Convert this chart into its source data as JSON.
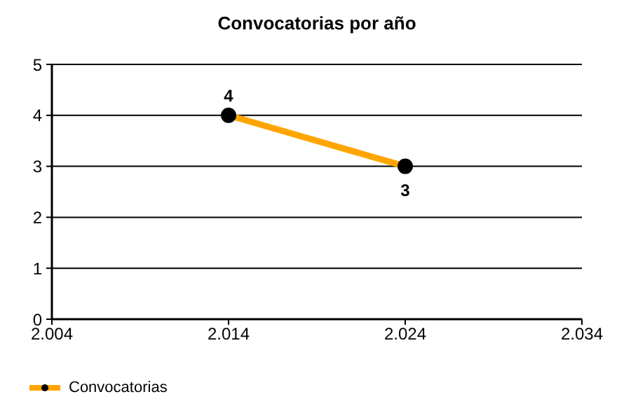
{
  "chart_data": {
    "type": "line",
    "title": "Convocatorias por año",
    "x": [
      2014,
      2024
    ],
    "series": [
      {
        "name": "Convocatorias",
        "color": "#ffa500",
        "values": [
          4,
          3
        ]
      }
    ],
    "xlim": [
      2004,
      2034
    ],
    "xticks": [
      {
        "value": 2004,
        "label": "2.004"
      },
      {
        "value": 2014,
        "label": "2.014"
      },
      {
        "value": 2024,
        "label": "2.024"
      },
      {
        "value": 2034,
        "label": "2.034"
      }
    ],
    "ylim": [
      0,
      5
    ],
    "yticks": [
      0,
      1,
      2,
      3,
      4,
      5
    ],
    "grid": "y",
    "legend": "bottom left",
    "marker": "circle",
    "line_style": "solid",
    "data_labels": true
  }
}
